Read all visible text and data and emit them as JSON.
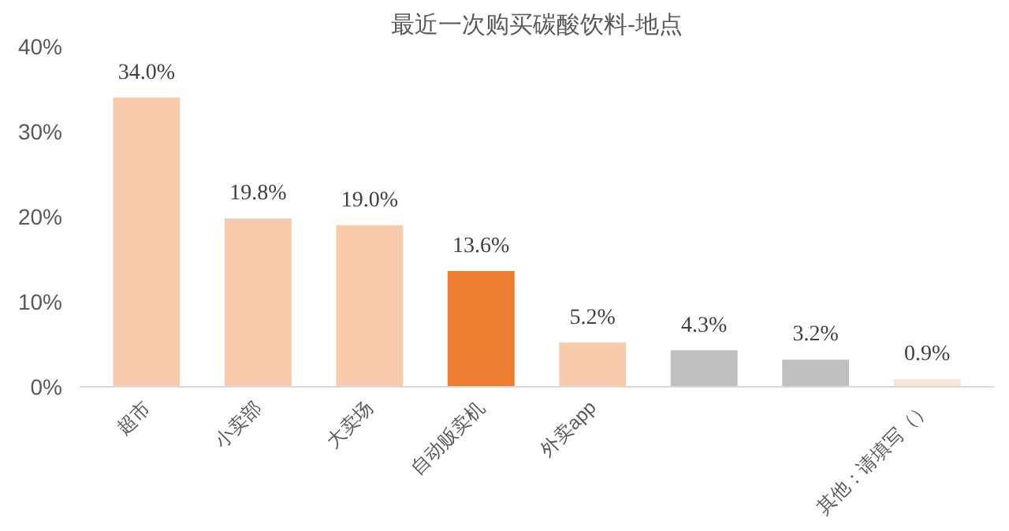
{
  "chart_data": {
    "type": "bar",
    "title": "最近一次购买碳酸饮料-地点",
    "categories": [
      "超市",
      "小卖部",
      "大卖场",
      "自动贩卖机",
      "外卖app",
      null,
      null,
      "其他：请填写（）"
    ],
    "values": [
      34.0,
      19.8,
      19.0,
      13.6,
      5.2,
      4.3,
      3.2,
      0.9
    ],
    "value_labels": [
      "34.0%",
      "19.8%",
      "19.0%",
      "13.6%",
      "5.2%",
      "4.3%",
      "3.2%",
      "0.9%"
    ],
    "colors": [
      "#f8cbad",
      "#f8cbad",
      "#f8cbad",
      "#ed7d31",
      "#f8cbad",
      "#bfbfbf",
      "#bfbfbf",
      "#fbe5d6"
    ],
    "ylim": [
      0,
      40
    ],
    "yticks": [
      {
        "value": 0,
        "label": "0%"
      },
      {
        "value": 10,
        "label": "10%"
      },
      {
        "value": 20,
        "label": "20%"
      },
      {
        "value": 30,
        "label": "30%"
      },
      {
        "value": 40,
        "label": "40%"
      }
    ],
    "grid": false
  }
}
